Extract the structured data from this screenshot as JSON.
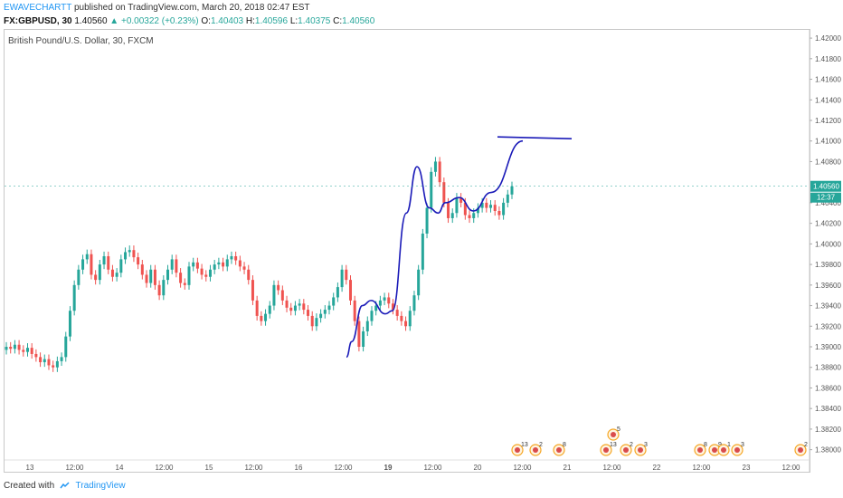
{
  "header": {
    "author": "EWAVECHARTT",
    "published": "published on TradingView.com, March 20, 2018 02:47 EST",
    "symbol": "FX:GBPUSD, 30",
    "last": "1.40560",
    "change": "+0.00322 (+0.23%)",
    "o_label": "O:",
    "o_value": "1.40403",
    "h_label": "H:",
    "h_value": "1.40596",
    "l_label": "L:",
    "l_value": "1.40375",
    "c_label": "C:",
    "c_value": "1.40560"
  },
  "chart_title": "British Pound/U.S. Dollar, 30, FXCM",
  "footer": {
    "created_with": "Created with",
    "brand": "TradingView"
  },
  "colors": {
    "up": "#26a69a",
    "down": "#ef5350",
    "drawing": "#1a1ab8",
    "price_tag": "#26a69a",
    "axis": "#555555"
  },
  "chart_data": {
    "type": "candlestick",
    "ylim": [
      1.379,
      1.4208
    ],
    "y_ticks": [
      "1.42000",
      "1.41800",
      "1.41600",
      "1.41400",
      "1.41200",
      "1.41000",
      "1.40800",
      "1.40560",
      "1.40400",
      "1.40200",
      "1.40000",
      "1.39800",
      "1.39600",
      "1.39400",
      "1.39200",
      "1.39000",
      "1.38800",
      "1.38600",
      "1.38400",
      "1.38200",
      "1.38000"
    ],
    "x_ticks": [
      "13",
      "12:00",
      "14",
      "12:00",
      "15",
      "12:00",
      "16",
      "12:00",
      "19",
      "12:00",
      "20",
      "12:00",
      "21",
      "12:00",
      "22",
      "12:00",
      "23",
      "12:00"
    ],
    "last_price_label": "1.40560",
    "countdown_label": "12:37",
    "close_series": [
      1.39,
      1.3898,
      1.3902,
      1.3897,
      1.3895,
      1.3899,
      1.3893,
      1.389,
      1.3885,
      1.3888,
      1.3882,
      1.388,
      1.3886,
      1.389,
      1.391,
      1.3935,
      1.396,
      1.3975,
      1.3985,
      1.399,
      1.397,
      1.3965,
      1.398,
      1.3988,
      1.3975,
      1.3968,
      1.3972,
      1.3985,
      1.3992,
      1.3994,
      1.3987,
      1.398,
      1.397,
      1.3962,
      1.3975,
      1.396,
      1.395,
      1.3965,
      1.3975,
      1.3985,
      1.3972,
      1.3962,
      1.396,
      1.3978,
      1.3982,
      1.3976,
      1.397,
      1.3968,
      1.3975,
      1.398,
      1.3982,
      1.3978,
      1.3985,
      1.3988,
      1.3984,
      1.3978,
      1.3975,
      1.3965,
      1.3945,
      1.393,
      1.3925,
      1.3932,
      1.394,
      1.396,
      1.3955,
      1.3945,
      1.3938,
      1.3935,
      1.394,
      1.3942,
      1.3936,
      1.393,
      1.392,
      1.3928,
      1.3932,
      1.3936,
      1.394,
      1.3948,
      1.3958,
      1.3975,
      1.3965,
      1.3945,
      1.3925,
      1.39,
      1.3915,
      1.3925,
      1.3935,
      1.394,
      1.3945,
      1.3948,
      1.3942,
      1.3936,
      1.393,
      1.3925,
      1.392,
      1.3935,
      1.395,
      1.3975,
      1.401,
      1.4035,
      1.407,
      1.408,
      1.406,
      1.404,
      1.4025,
      1.403,
      1.4045,
      1.404,
      1.4028,
      1.4025,
      1.403,
      1.4035,
      1.404,
      1.4035,
      1.4038,
      1.4032,
      1.4028,
      1.404,
      1.4048,
      1.4056
    ],
    "drawings": {
      "curve": [
        [
          1.389,
          0
        ],
        [
          1.3905,
          0.03
        ],
        [
          1.394,
          0.09
        ],
        [
          1.3945,
          0.14
        ],
        [
          1.3932,
          0.22
        ],
        [
          1.3935,
          0.26
        ],
        [
          1.403,
          0.34
        ],
        [
          1.4075,
          0.4
        ],
        [
          1.4035,
          0.47
        ],
        [
          1.403,
          0.52
        ],
        [
          1.404,
          0.56
        ],
        [
          1.4045,
          0.64
        ],
        [
          1.4032,
          0.72
        ],
        [
          1.405,
          0.82
        ],
        [
          1.41,
          1.0
        ]
      ],
      "horizontal_line_value": 1.4104
    },
    "event_badges": [
      {
        "label": "13"
      },
      {
        "label": "2"
      },
      {
        "label": "8"
      },
      {
        "label": "5"
      },
      {
        "label": "13"
      },
      {
        "label": "2"
      },
      {
        "label": "3"
      },
      {
        "label": "8"
      },
      {
        "label": "9"
      },
      {
        "label": "1"
      },
      {
        "label": "3"
      },
      {
        "label": "2"
      }
    ]
  }
}
